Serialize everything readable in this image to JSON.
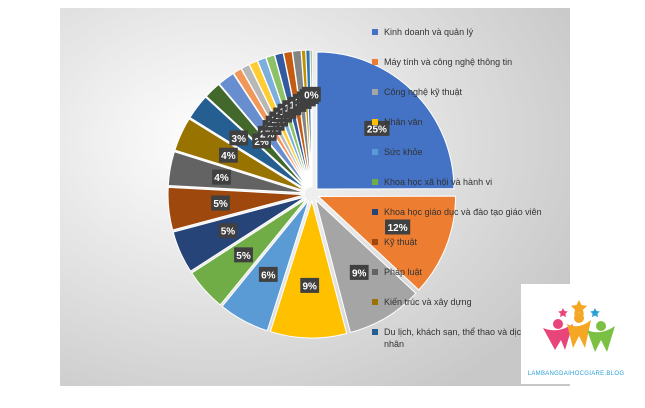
{
  "chart_data": {
    "type": "pie",
    "title": "",
    "slices": [
      {
        "label": "Kinh doanh và quản lý",
        "value": 25,
        "data_label": "25%",
        "color": "#4472c4"
      },
      {
        "label": "Máy tính và công nghệ thông tin",
        "value": 12,
        "data_label": "12%",
        "color": "#ed7d31"
      },
      {
        "label": "Công nghệ kỹ thuật",
        "value": 9,
        "data_label": "9%",
        "color": "#a5a5a5"
      },
      {
        "label": "Nhân văn",
        "value": 9,
        "data_label": "9%",
        "color": "#ffc000"
      },
      {
        "label": "Sức khỏe",
        "value": 6,
        "data_label": "6%",
        "color": "#5b9bd5"
      },
      {
        "label": "Khoa học xã hội và hành vi",
        "value": 5,
        "data_label": "5%",
        "color": "#70ad47"
      },
      {
        "label": "Khoa học giáo dục và đào tạo giáo viên",
        "value": 5,
        "data_label": "5%",
        "color": "#264478"
      },
      {
        "label": "Kỹ thuật",
        "value": 5,
        "data_label": "5%",
        "color": "#9e480e"
      },
      {
        "label": "Pháp luật",
        "value": 4,
        "data_label": "4%",
        "color": "#636363"
      },
      {
        "label": "Kiến trúc và xây dựng",
        "value": 4,
        "data_label": "4%",
        "color": "#997300"
      },
      {
        "label": "Du lịch, khách sạn, thể thao và dịch vụ cá nhân",
        "value": 3,
        "data_label": "3%",
        "color": "#255e91"
      },
      {
        "label": "",
        "value": 2,
        "data_label": "2%",
        "color": "#43682b"
      },
      {
        "label": "",
        "value": 2,
        "data_label": "2%",
        "color": "#698ed0"
      },
      {
        "label": "",
        "value": 1,
        "data_label": "1%",
        "color": "#f1975a"
      },
      {
        "label": "",
        "value": 1,
        "data_label": "1%",
        "color": "#b7b7b7"
      },
      {
        "label": "",
        "value": 1,
        "data_label": "1%",
        "color": "#ffcd33"
      },
      {
        "label": "",
        "value": 1,
        "data_label": "1%",
        "color": "#7cafdd"
      },
      {
        "label": "",
        "value": 1,
        "data_label": "1%",
        "color": "#8cc168"
      },
      {
        "label": "",
        "value": 1,
        "data_label": "1%",
        "color": "#335aa1"
      },
      {
        "label": "",
        "value": 1,
        "data_label": "1%",
        "color": "#c55a11"
      },
      {
        "label": "",
        "value": 1,
        "data_label": "1%",
        "color": "#848484"
      },
      {
        "label": "",
        "value": 0.5,
        "data_label": "1%",
        "color": "#bf9000"
      },
      {
        "label": "",
        "value": 0.5,
        "data_label": "1%",
        "color": "#2e75b6"
      },
      {
        "label": "",
        "value": 0.2,
        "data_label": "0%",
        "color": "#548235"
      }
    ],
    "legend_position": "right",
    "legend": [
      "Kinh doanh và quản lý",
      "Máy tính và công nghệ thông tin",
      "Công nghệ kỹ thuật",
      "Nhân văn",
      "Sức khỏe",
      "Khoa học xã hội và hành vi",
      "Khoa học giáo dục và đào tạo giáo viên",
      "Kỹ thuật",
      "Pháp luật",
      "Kiến trúc và xây dựng",
      "Du lịch, khách sạn, thể thao và dịch vụ cá nhân"
    ],
    "exploded": true
  },
  "brand": {
    "text": "LAMBANGDAIHOCGIARE.BLOG"
  }
}
